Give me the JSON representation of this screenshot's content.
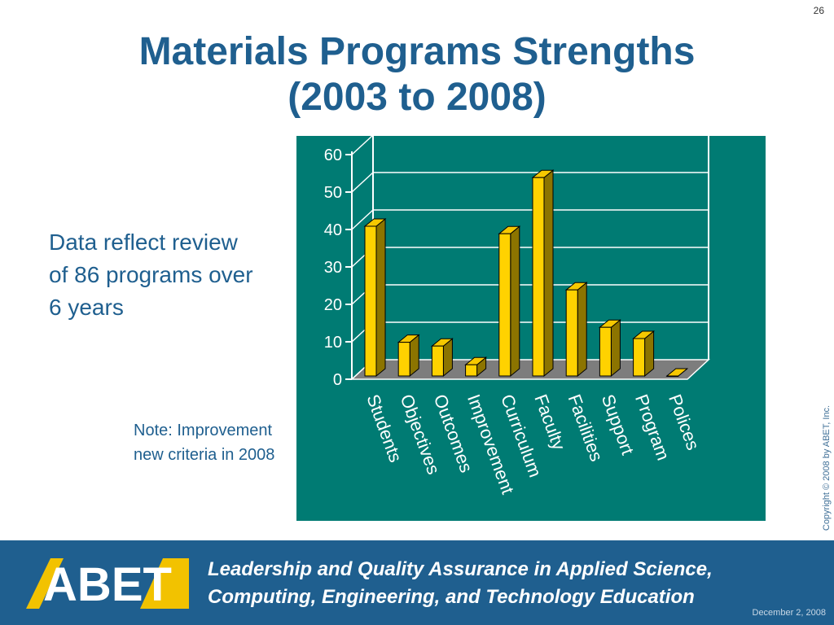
{
  "slide_number": "26",
  "title_line1": "Materials Programs Strengths",
  "title_line2": "(2003 to 2008)",
  "data_note": "Data reflect review of 86 programs over 6 years",
  "small_note": "Note: Improvement new criteria in 2008",
  "copyright": "Copyright © 2008 by ABET, Inc.",
  "footer": {
    "logo_text": "ABET",
    "tagline_line1": "Leadership and Quality Assurance in Applied Science,",
    "tagline_line2": "Computing, Engineering, and Technology Education",
    "date": "December 2, 2008"
  },
  "colors": {
    "title": "#1f5f8f",
    "chart_background": "#007b73",
    "bar_front": "#ffd200",
    "bar_side": "#8c7400",
    "floor": "#7d7d7d",
    "footer": "#1f5f8f"
  },
  "chart_data": {
    "type": "bar",
    "categories": [
      "Students",
      "Objectives",
      "Outcomes",
      "Improvement",
      "Curriculum",
      "Faculty",
      "Facilities",
      "Support",
      "Program",
      "Polices"
    ],
    "values": [
      40,
      9,
      8,
      3,
      38,
      53,
      23,
      13,
      10,
      0
    ],
    "yticks": [
      "0",
      "10",
      "20",
      "30",
      "40",
      "50",
      "60"
    ],
    "ylim": [
      0,
      60
    ],
    "grid": true,
    "legend": "none",
    "style": "3d"
  }
}
